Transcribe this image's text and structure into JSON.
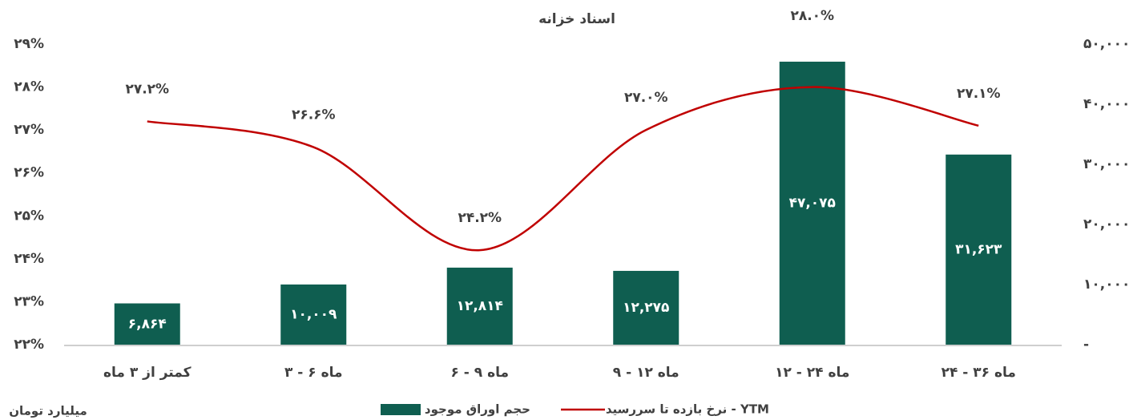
{
  "chart_data": {
    "type": "bar-line",
    "title": "اسناد خزانه",
    "unit_note": "میلیارد تومان",
    "categories": [
      "کمتر از ۳ ماه",
      "۳ - ۶ ماه",
      "۶ - ۹ ماه",
      "۹ - ۱۲ ماه",
      "۱۲ - ۲۴ ماه",
      "۲۴ - ۳۶ ماه"
    ],
    "series": [
      {
        "name": "حجم اوراق موجود",
        "type": "bar",
        "axis": "y2",
        "color": "#0f5e50",
        "values": [
          6864,
          10009,
          12814,
          12275,
          47075,
          31623
        ],
        "value_labels": [
          "۶,۸۶۴",
          "۱۰,۰۰۹",
          "۱۲,۸۱۴",
          "۱۲,۲۷۵",
          "۴۷,۰۷۵",
          "۳۱,۶۲۳"
        ]
      },
      {
        "name": "نرخ بازده تا سررسید - YTM",
        "type": "line",
        "axis": "y",
        "color": "#c00000",
        "values": [
          27.2,
          26.6,
          24.2,
          27.0,
          28.0,
          27.1
        ],
        "value_labels": [
          "۲۷.۲%",
          "۲۶.۶%",
          "۲۴.۲%",
          "۲۷.۰%",
          "۲۸.۰%",
          "۲۷.۱%"
        ]
      }
    ],
    "ylim": [
      22,
      29
    ],
    "yticks": [
      {
        "value": 22,
        "label": "۲۲%"
      },
      {
        "value": 23,
        "label": "۲۳%"
      },
      {
        "value": 24,
        "label": "۲۴%"
      },
      {
        "value": 25,
        "label": "۲۵%"
      },
      {
        "value": 26,
        "label": "۲۶%"
      },
      {
        "value": 27,
        "label": "۲۷%"
      },
      {
        "value": 28,
        "label": "۲۸%"
      },
      {
        "value": 29,
        "label": "۲۹%"
      }
    ],
    "y2lim": [
      0,
      50000
    ],
    "y2ticks": [
      {
        "value": 0,
        "label": "-"
      },
      {
        "value": 10000,
        "label": "۱۰,۰۰۰"
      },
      {
        "value": 20000,
        "label": "۲۰,۰۰۰"
      },
      {
        "value": 30000,
        "label": "۳۰,۰۰۰"
      },
      {
        "value": 40000,
        "label": "۴۰,۰۰۰"
      },
      {
        "value": 50000,
        "label": "۵۰,۰۰۰"
      }
    ],
    "legend": "bottom"
  }
}
